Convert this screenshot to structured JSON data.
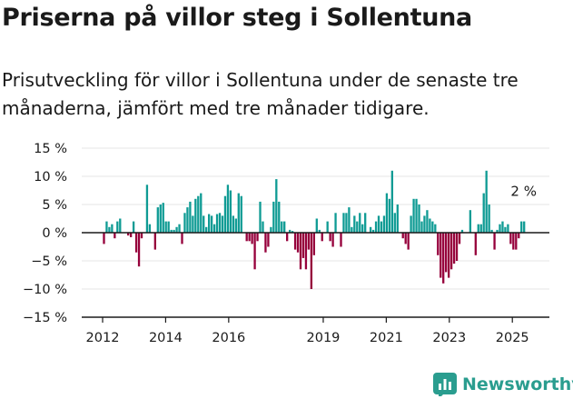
{
  "title": "Priserna på villor steg i Sollentuna",
  "subtitle": "Prisutveckling för villor i Sollentuna under de senaste tre månaderna, jämfört med tre månader tidigare.",
  "brand": {
    "name": "Newsworthy",
    "color": "#2a9d8f"
  },
  "colors": {
    "positive": "#0f9b94",
    "negative": "#96003b",
    "axis": "#1a1a1a",
    "grid": "#e6e6e6"
  },
  "chart_data": {
    "type": "bar",
    "unit": "%",
    "ylim": [
      -15,
      15
    ],
    "yticks": [
      {
        "value": 15,
        "label": "15 %"
      },
      {
        "value": 10,
        "label": "10 %"
      },
      {
        "value": 5,
        "label": "5 %"
      },
      {
        "value": 0,
        "label": "0 %"
      },
      {
        "value": -5,
        "label": "−5 %"
      },
      {
        "value": -10,
        "label": "−10 %"
      },
      {
        "value": -15,
        "label": "−15 %"
      }
    ],
    "xticks": [
      {
        "year": 2012,
        "label": "2012"
      },
      {
        "year": 2014,
        "label": "2014"
      },
      {
        "year": 2016,
        "label": "2016"
      },
      {
        "year": 2019,
        "label": "2019"
      },
      {
        "year": 2021,
        "label": "2021"
      },
      {
        "year": 2023,
        "label": "2023"
      },
      {
        "year": 2025,
        "label": "2025"
      }
    ],
    "start": "2012-01",
    "values": [
      -2,
      2,
      1,
      1.5,
      -1,
      2,
      2.5,
      0,
      0,
      -0.5,
      -0.8,
      2,
      -3.5,
      -6,
      -1,
      0,
      8.5,
      1.5,
      0,
      -3,
      4.5,
      5,
      5.3,
      2,
      2,
      0.5,
      0.5,
      1,
      1.5,
      -2,
      3.5,
      4.5,
      5.5,
      3,
      6,
      6.5,
      7,
      3,
      1,
      3.3,
      3,
      1.5,
      3.3,
      3.5,
      3,
      6.5,
      8.5,
      7.5,
      3,
      2.5,
      7,
      6.5,
      0,
      -1.5,
      -1.5,
      -2,
      -6.5,
      -1.5,
      5.5,
      2,
      -3.5,
      -2.5,
      1,
      5.5,
      9.5,
      5.5,
      2,
      2,
      -1.5,
      0.5,
      0.3,
      -3,
      -3.5,
      -6.5,
      -4.5,
      -6.5,
      -3,
      -10,
      -4,
      2.5,
      0.5,
      -1.5,
      0,
      2,
      -1.5,
      -2.5,
      3.5,
      0,
      -2.5,
      3.5,
      3.5,
      4.5,
      1,
      3,
      2,
      3.5,
      1.5,
      3.5,
      0,
      1,
      0.5,
      2,
      3,
      2,
      3,
      7,
      6,
      11,
      3.5,
      5,
      0,
      -1,
      -2,
      -3,
      3,
      6,
      6,
      5,
      2,
      3,
      4,
      2.5,
      2,
      1.5,
      -4,
      -8,
      -9,
      -7,
      -8,
      -6.5,
      -5.5,
      -5,
      -2,
      0.5,
      0,
      0,
      4,
      0,
      -4,
      1.5,
      1.5,
      7,
      11,
      5,
      0.5,
      -3,
      0.5,
      1.5,
      2,
      1,
      1.5,
      -2,
      -3,
      -3,
      -1,
      2,
      2
    ],
    "annotation": {
      "text": "2 %"
    }
  }
}
